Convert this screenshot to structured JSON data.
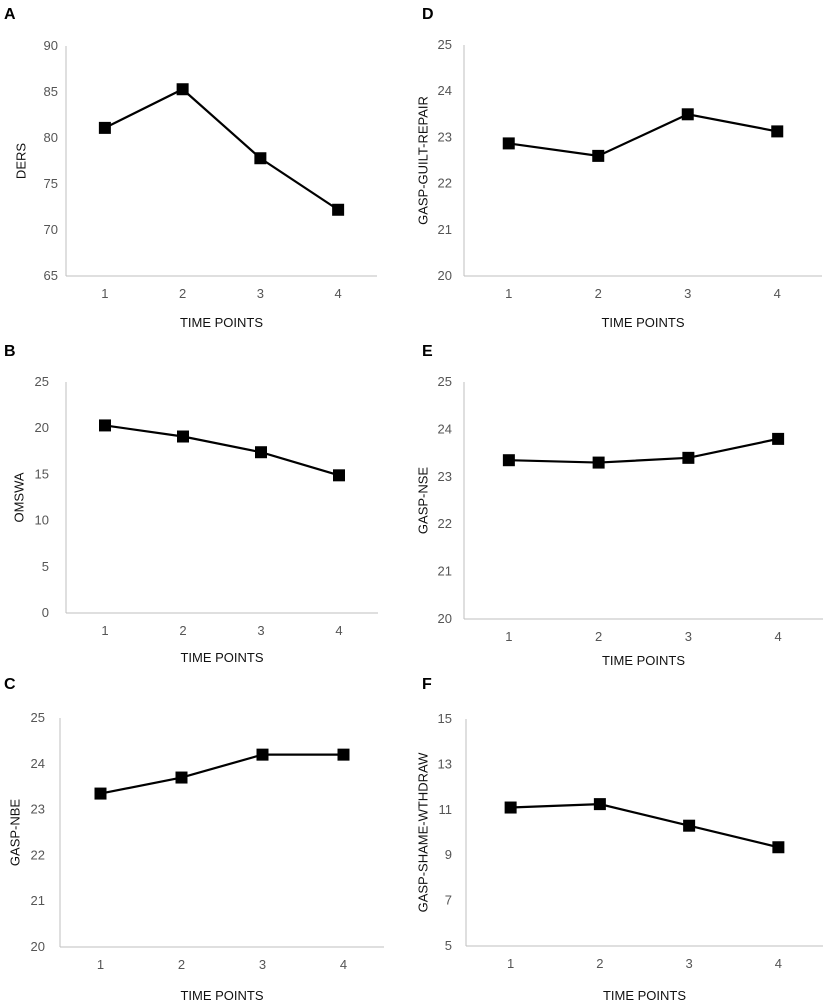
{
  "chart_data": [
    {
      "panel": "A",
      "type": "line",
      "categories": [
        "1",
        "2",
        "3",
        "4"
      ],
      "values": [
        81.1,
        85.3,
        77.8,
        72.2
      ],
      "xlabel": "TIME POINTS",
      "ylabel": "DERS",
      "ylim": [
        65,
        90
      ],
      "yticks": [
        "65",
        "70",
        "75",
        "80",
        "85",
        "90"
      ]
    },
    {
      "panel": "B",
      "type": "line",
      "categories": [
        "1",
        "2",
        "3",
        "4"
      ],
      "values": [
        20.3,
        19.1,
        17.4,
        14.9
      ],
      "xlabel": "TIME POINTS",
      "ylabel": "OMSWA",
      "ylim": [
        0,
        25
      ],
      "yticks": [
        "0",
        "5",
        "10",
        "15",
        "20",
        "25"
      ]
    },
    {
      "panel": "C",
      "type": "line",
      "categories": [
        "1",
        "2",
        "3",
        "4"
      ],
      "values": [
        23.35,
        23.7,
        24.2,
        24.2
      ],
      "xlabel": "TIME POINTS",
      "ylabel": "GASP-NBE",
      "ylim": [
        20,
        25
      ],
      "yticks": [
        "20",
        "21",
        "22",
        "23",
        "24",
        "25"
      ]
    },
    {
      "panel": "D",
      "type": "line",
      "categories": [
        "1",
        "2",
        "3",
        "4"
      ],
      "values": [
        22.87,
        22.6,
        23.5,
        23.13
      ],
      "xlabel": "TIME POINTS",
      "ylabel": "GASP-GUILT-REPAIR",
      "ylim": [
        20,
        25
      ],
      "yticks": [
        "20",
        "21",
        "22",
        "23",
        "24",
        "25"
      ]
    },
    {
      "panel": "E",
      "type": "line",
      "categories": [
        "1",
        "2",
        "3",
        "4"
      ],
      "values": [
        23.35,
        23.3,
        23.4,
        23.8
      ],
      "xlabel": "TIME POINTS",
      "ylabel": "GASP-NSE",
      "ylim": [
        20,
        25
      ],
      "yticks": [
        "20",
        "21",
        "22",
        "23",
        "24",
        "25"
      ]
    },
    {
      "panel": "F",
      "type": "line",
      "categories": [
        "1",
        "2",
        "3",
        "4"
      ],
      "values": [
        11.1,
        11.25,
        10.3,
        9.35
      ],
      "xlabel": "TIME POINTS",
      "ylabel": "GASP-SHAME-WTHDRAW",
      "ylim": [
        5,
        15
      ],
      "yticks": [
        "5",
        "7",
        "9",
        "11",
        "13",
        "15"
      ]
    }
  ]
}
